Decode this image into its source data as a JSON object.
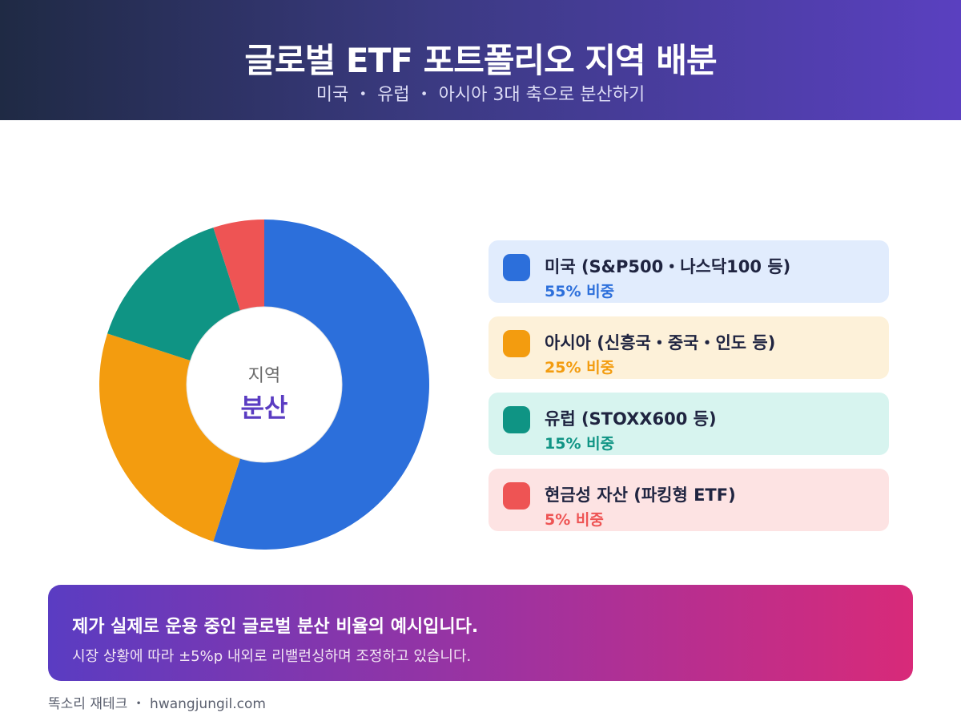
{
  "header": {
    "title": "글로벌 ETF 포트폴리오 지역 배분",
    "subtitle": "미국 ・ 유럽 ・ 아시아 3대 축으로 분산하기"
  },
  "chart_data": {
    "type": "pie",
    "donut": true,
    "center_label_top": "지역",
    "center_label_bottom": "분산",
    "series": [
      {
        "label": "미국 (S&P500・나스닥100 등)",
        "value": 55,
        "value_label": "55% 비중",
        "color": "#2c6fdb",
        "bg": "#e1ecfd"
      },
      {
        "label": "아시아 (신흥국・중국・인도 등)",
        "value": 25,
        "value_label": "25% 비중",
        "color": "#f39c0f",
        "bg": "#fdf1d9"
      },
      {
        "label": "유럽 (STOXX600 등)",
        "value": 15,
        "value_label": "15% 비중",
        "color": "#0f9484",
        "bg": "#d7f4ef"
      },
      {
        "label": "현금성 자산 (파킹형 ETF)",
        "value": 5,
        "value_label": "5% 비중",
        "color": "#ee5454",
        "bg": "#fde3e3"
      }
    ],
    "center_label_color": "#5a3cc2"
  },
  "note": {
    "main": "제가 실제로 운용 중인 글로벌 분산 비율의 예시입니다.",
    "sub": "시장 상황에 따라 ±5%p 내외로 리밸런싱하며 조정하고 있습니다."
  },
  "footer": {
    "text": "똑소리 재테크 ・ hwangjungil.com"
  }
}
